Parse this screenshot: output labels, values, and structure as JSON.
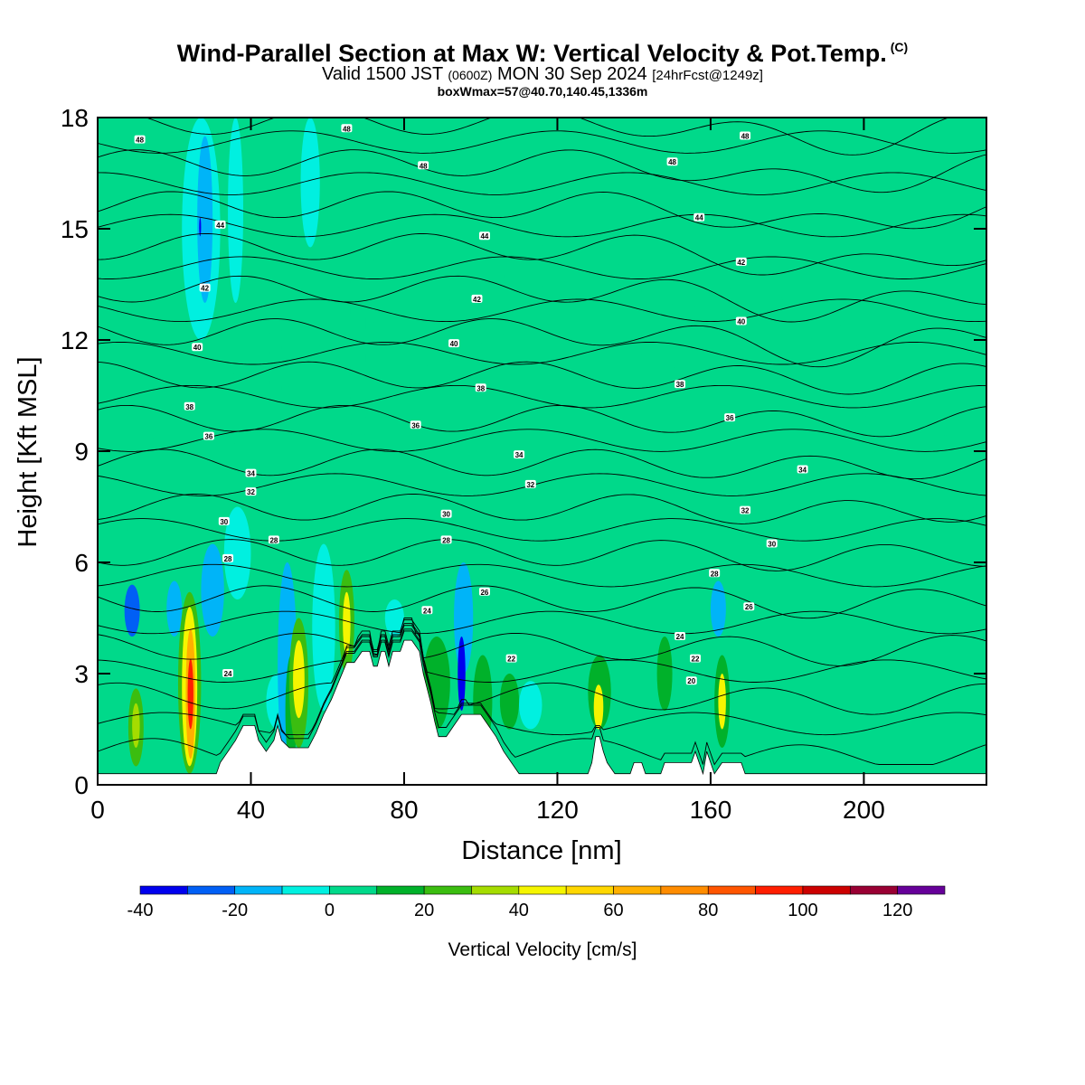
{
  "header": {
    "title": "Wind-Parallel Section at Max W: Vertical Velocity & Pot.Temp.",
    "title_mark": "(C)",
    "valid_prefix": "Valid 1500 JST",
    "valid_utc": "(0600Z)",
    "valid_date": "MON 30 Sep 2024",
    "forecast": "[24hrFcst@1249z]",
    "box_info": "boxWmax=57@40.70,140.45,1336m"
  },
  "chart_data": {
    "type": "heatmap",
    "xlabel": "Distance [nm]",
    "ylabel": "Height [Kft MSL]",
    "xlim": [
      0,
      232
    ],
    "ylim": [
      0,
      18
    ],
    "x_ticks": [
      "0",
      "40",
      "80",
      "120",
      "160",
      "200"
    ],
    "x_tick_values": [
      0,
      40,
      80,
      120,
      160,
      200
    ],
    "y_ticks": [
      "0",
      "3",
      "6",
      "9",
      "12",
      "15",
      "18"
    ],
    "y_tick_values": [
      0,
      3,
      6,
      9,
      12,
      15,
      18
    ],
    "background_field_value": 0,
    "colorbar": {
      "label": "Vertical Velocity [cm/s]",
      "tick_labels": [
        "-40",
        "-20",
        "0",
        "20",
        "40",
        "60",
        "80",
        "100",
        "120"
      ],
      "tick_values": [
        -40,
        -20,
        0,
        20,
        40,
        60,
        80,
        100,
        120
      ],
      "bins": [
        -40,
        -30,
        -20,
        -10,
        0,
        10,
        20,
        30,
        40,
        50,
        60,
        70,
        80,
        90,
        100,
        110,
        120,
        130
      ],
      "colors": [
        "#0000ee",
        "#005ff5",
        "#00b4f8",
        "#00f0e0",
        "#00d98a",
        "#00b12a",
        "#3bbd10",
        "#a5dc00",
        "#f5f500",
        "#ffd700",
        "#ffb000",
        "#ff8c00",
        "#ff5500",
        "#ff1e00",
        "#cc0000",
        "#990033",
        "#660099"
      ]
    },
    "cells": [
      {
        "x": [
          0,
          4
        ],
        "y": [
          5.5,
          9.5
        ],
        "w": 5
      },
      {
        "x": [
          4,
          10
        ],
        "y": [
          0.5,
          3.5
        ],
        "w": 5
      },
      {
        "x": [
          8,
          12
        ],
        "y": [
          0.5,
          2.6
        ],
        "w": 20
      },
      {
        "x": [
          9,
          11
        ],
        "y": [
          1.0,
          2.2
        ],
        "w": 35
      },
      {
        "x": [
          7,
          11
        ],
        "y": [
          4.0,
          5.4
        ],
        "w": -25
      },
      {
        "x": [
          8,
          12
        ],
        "y": [
          5.5,
          8.5
        ],
        "w": 5
      },
      {
        "x": [
          16,
          22
        ],
        "y": [
          0.5,
          2.0
        ],
        "w": 5
      },
      {
        "x": [
          18,
          22
        ],
        "y": [
          4.0,
          5.5
        ],
        "w": -15
      },
      {
        "x": [
          21,
          27
        ],
        "y": [
          0.3,
          5.2
        ],
        "w": 25
      },
      {
        "x": [
          22,
          26
        ],
        "y": [
          0.5,
          4.8
        ],
        "w": 45
      },
      {
        "x": [
          23,
          25.5
        ],
        "y": [
          0.7,
          4.2
        ],
        "w": 65
      },
      {
        "x": [
          23.5,
          25
        ],
        "y": [
          1.5,
          3.4
        ],
        "w": 95
      },
      {
        "x": [
          20,
          24
        ],
        "y": [
          11.5,
          18
        ],
        "w": 5
      },
      {
        "x": [
          22,
          32
        ],
        "y": [
          12,
          18
        ],
        "w": -10
      },
      {
        "x": [
          26,
          30
        ],
        "y": [
          13,
          17.5
        ],
        "w": -20
      },
      {
        "x": [
          26.5,
          27
        ],
        "y": [
          14.8,
          15.3
        ],
        "w": -35
      },
      {
        "x": [
          30,
          36
        ],
        "y": [
          8.0,
          12.0
        ],
        "w": 5
      },
      {
        "x": [
          27,
          33
        ],
        "y": [
          4.0,
          6.5
        ],
        "w": -15
      },
      {
        "x": [
          33,
          40
        ],
        "y": [
          5.0,
          7.5
        ],
        "w": -10
      },
      {
        "x": [
          38,
          42
        ],
        "y": [
          1.0,
          4.5
        ],
        "w": 5
      },
      {
        "x": [
          38,
          44
        ],
        "y": [
          12.5,
          18
        ],
        "w": 5
      },
      {
        "x": [
          34,
          38
        ],
        "y": [
          13,
          18
        ],
        "w": -10
      },
      {
        "x": [
          44,
          50
        ],
        "y": [
          1.5,
          3.0
        ],
        "w": -10
      },
      {
        "x": [
          45,
          48
        ],
        "y": [
          8.0,
          14.5
        ],
        "w": 5
      },
      {
        "x": [
          47,
          52
        ],
        "y": [
          0.5,
          6.0
        ],
        "w": -15
      },
      {
        "x": [
          49,
          52
        ],
        "y": [
          0.5,
          3.5
        ],
        "w": 15
      },
      {
        "x": [
          50,
          55
        ],
        "y": [
          1.0,
          4.5
        ],
        "w": 25
      },
      {
        "x": [
          51,
          54
        ],
        "y": [
          1.8,
          3.9
        ],
        "w": 45
      },
      {
        "x": [
          51,
          53
        ],
        "y": [
          9.5,
          11.0
        ],
        "w": 15
      },
      {
        "x": [
          50,
          55
        ],
        "y": [
          8.5,
          12.5
        ],
        "w": 5
      },
      {
        "x": [
          53,
          58
        ],
        "y": [
          14.5,
          18
        ],
        "w": -10
      },
      {
        "x": [
          56,
          62
        ],
        "y": [
          2.0,
          6.5
        ],
        "w": -10
      },
      {
        "x": [
          58,
          63
        ],
        "y": [
          9.0,
          16.0
        ],
        "w": 5
      },
      {
        "x": [
          63,
          67
        ],
        "y": [
          3.0,
          5.8
        ],
        "w": 25
      },
      {
        "x": [
          64,
          66
        ],
        "y": [
          3.5,
          5.2
        ],
        "w": 45
      },
      {
        "x": [
          66,
          70
        ],
        "y": [
          6.0,
          18
        ],
        "w": 5
      },
      {
        "x": [
          72,
          76
        ],
        "y": [
          10.0,
          17.0
        ],
        "w": 5
      },
      {
        "x": [
          75,
          80
        ],
        "y": [
          4.0,
          5.0
        ],
        "w": -10
      },
      {
        "x": [
          82,
          88
        ],
        "y": [
          3.5,
          5.0
        ],
        "w": 5
      },
      {
        "x": [
          85,
          92
        ],
        "y": [
          1.5,
          4.0
        ],
        "w": 15
      },
      {
        "x": [
          88,
          90
        ],
        "y": [
          10.5,
          13.0
        ],
        "w": 15
      },
      {
        "x": [
          86,
          92
        ],
        "y": [
          8.0,
          16.5
        ],
        "w": 5
      },
      {
        "x": [
          93,
          98
        ],
        "y": [
          3.0,
          6.0
        ],
        "w": -15
      },
      {
        "x": [
          94,
          96
        ],
        "y": [
          2.0,
          4.0
        ],
        "w": -35
      },
      {
        "x": [
          98,
          103
        ],
        "y": [
          1.0,
          3.5
        ],
        "w": 15
      },
      {
        "x": [
          100,
          106
        ],
        "y": [
          8.5,
          18
        ],
        "w": 5
      },
      {
        "x": [
          105,
          110
        ],
        "y": [
          1.5,
          3.0
        ],
        "w": 15
      },
      {
        "x": [
          110,
          116
        ],
        "y": [
          1.5,
          2.8
        ],
        "w": -10
      },
      {
        "x": [
          116,
          122
        ],
        "y": [
          11.0,
          17.0
        ],
        "w": 5
      },
      {
        "x": [
          118,
          124
        ],
        "y": [
          3.5,
          6.0
        ],
        "w": 5
      },
      {
        "x": [
          126,
          130
        ],
        "y": [
          1.5,
          3.2
        ],
        "w": 5
      },
      {
        "x": [
          128,
          134
        ],
        "y": [
          1.5,
          3.5
        ],
        "w": 15
      },
      {
        "x": [
          129.5,
          132
        ],
        "y": [
          1.5,
          2.7
        ],
        "w": 45
      },
      {
        "x": [
          136,
          142
        ],
        "y": [
          8.0,
          17.5
        ],
        "w": 5
      },
      {
        "x": [
          140,
          146
        ],
        "y": [
          1.5,
          5.5
        ],
        "w": 5
      },
      {
        "x": [
          146,
          150
        ],
        "y": [
          2.0,
          4.0
        ],
        "w": 15
      },
      {
        "x": [
          150,
          156
        ],
        "y": [
          10.0,
          17.0
        ],
        "w": 5
      },
      {
        "x": [
          156,
          160
        ],
        "y": [
          1.5,
          3.5
        ],
        "w": 5
      },
      {
        "x": [
          160,
          164
        ],
        "y": [
          4.0,
          5.5
        ],
        "w": -20
      },
      {
        "x": [
          161,
          165
        ],
        "y": [
          1.0,
          3.5
        ],
        "w": 15
      },
      {
        "x": [
          162,
          164
        ],
        "y": [
          1.5,
          3.0
        ],
        "w": 45
      },
      {
        "x": [
          165,
          175
        ],
        "y": [
          9.0,
          17.0
        ],
        "w": 5
      },
      {
        "x": [
          170,
          195
        ],
        "y": [
          7.5,
          15.5
        ],
        "w": 5
      },
      {
        "x": [
          176,
          200
        ],
        "y": [
          12.0,
          18
        ],
        "w": 5
      },
      {
        "x": [
          195,
          232
        ],
        "y": [
          9.5,
          12.5
        ],
        "w": 5
      },
      {
        "x": [
          200,
          232
        ],
        "y": [
          7.0,
          9.5
        ],
        "w": 5
      },
      {
        "x": [
          212,
          224
        ],
        "y": [
          3.0,
          7.5
        ],
        "w": 5
      },
      {
        "x": [
          220,
          232
        ],
        "y": [
          1.5,
          6.5
        ],
        "w": 5
      },
      {
        "x": [
          225,
          232
        ],
        "y": [
          0.5,
          3.0
        ],
        "w": 5
      },
      {
        "x": [
          0,
          6
        ],
        "y": [
          16.0,
          18
        ],
        "w": 5
      },
      {
        "x": [
          14,
          18
        ],
        "y": [
          9.0,
          11.5
        ],
        "w": 5
      }
    ],
    "terrain": [
      [
        0,
        0.3
      ],
      [
        31,
        0.3
      ],
      [
        32,
        0.6
      ],
      [
        34,
        0.9
      ],
      [
        36,
        1.2
      ],
      [
        38,
        1.6
      ],
      [
        41,
        1.6
      ],
      [
        42,
        1.2
      ],
      [
        44,
        0.9
      ],
      [
        46,
        1.2
      ],
      [
        47,
        1.6
      ],
      [
        48,
        1.2
      ],
      [
        50,
        1.0
      ],
      [
        55,
        1.0
      ],
      [
        57,
        1.4
      ],
      [
        59,
        1.9
      ],
      [
        61,
        2.3
      ],
      [
        63,
        2.8
      ],
      [
        65,
        3.3
      ],
      [
        67,
        3.3
      ],
      [
        69,
        3.6
      ],
      [
        71,
        3.6
      ],
      [
        72,
        3.2
      ],
      [
        73,
        3.2
      ],
      [
        74,
        3.6
      ],
      [
        75,
        3.6
      ],
      [
        76,
        3.2
      ],
      [
        77,
        3.6
      ],
      [
        79,
        3.6
      ],
      [
        80,
        3.9
      ],
      [
        82,
        3.9
      ],
      [
        84,
        3.6
      ],
      [
        85,
        3.0
      ],
      [
        86,
        2.6
      ],
      [
        87,
        2.2
      ],
      [
        88,
        1.7
      ],
      [
        89,
        1.3
      ],
      [
        91,
        1.3
      ],
      [
        93,
        1.6
      ],
      [
        95,
        1.9
      ],
      [
        100,
        1.9
      ],
      [
        102,
        1.6
      ],
      [
        104,
        1.3
      ],
      [
        106,
        0.9
      ],
      [
        108,
        0.6
      ],
      [
        110,
        0.3
      ],
      [
        128,
        0.3
      ],
      [
        129,
        0.6
      ],
      [
        130,
        1.3
      ],
      [
        131,
        1.3
      ],
      [
        132,
        0.9
      ],
      [
        133,
        0.6
      ],
      [
        135,
        0.3
      ],
      [
        139,
        0.3
      ],
      [
        140,
        0.6
      ],
      [
        142,
        0.6
      ],
      [
        143,
        0.3
      ],
      [
        147,
        0.3
      ],
      [
        148,
        0.6
      ],
      [
        155,
        0.6
      ],
      [
        156,
        0.9
      ],
      [
        157,
        0.6
      ],
      [
        158,
        0.3
      ],
      [
        159,
        0.9
      ],
      [
        160,
        0.6
      ],
      [
        161,
        0.3
      ],
      [
        163,
        0.6
      ],
      [
        168,
        0.6
      ],
      [
        169,
        0.3
      ],
      [
        232,
        0.3
      ]
    ],
    "theta_levels": [
      20,
      22,
      24,
      26,
      28,
      30,
      32,
      34,
      36,
      38,
      40,
      42,
      44,
      46,
      48
    ],
    "isentrope_labels": [
      {
        "text": "48",
        "x": 11,
        "y": 17.4
      },
      {
        "text": "48",
        "x": 65,
        "y": 17.7
      },
      {
        "text": "48",
        "x": 85,
        "y": 16.7
      },
      {
        "text": "48",
        "x": 150,
        "y": 16.8
      },
      {
        "text": "48",
        "x": 169,
        "y": 17.5
      },
      {
        "text": "44",
        "x": 32,
        "y": 15.1
      },
      {
        "text": "44",
        "x": 101,
        "y": 14.8
      },
      {
        "text": "44",
        "x": 157,
        "y": 15.3
      },
      {
        "text": "42",
        "x": 28,
        "y": 13.4
      },
      {
        "text": "42",
        "x": 99,
        "y": 13.1
      },
      {
        "text": "42",
        "x": 168,
        "y": 14.1
      },
      {
        "text": "40",
        "x": 26,
        "y": 11.8
      },
      {
        "text": "40",
        "x": 93,
        "y": 11.9
      },
      {
        "text": "40",
        "x": 168,
        "y": 12.5
      },
      {
        "text": "38",
        "x": 24,
        "y": 10.2
      },
      {
        "text": "38",
        "x": 100,
        "y": 10.7
      },
      {
        "text": "38",
        "x": 152,
        "y": 10.8
      },
      {
        "text": "36",
        "x": 29,
        "y": 9.4
      },
      {
        "text": "36",
        "x": 83,
        "y": 9.7
      },
      {
        "text": "36",
        "x": 165,
        "y": 9.9
      },
      {
        "text": "34",
        "x": 40,
        "y": 8.4
      },
      {
        "text": "34",
        "x": 110,
        "y": 8.9
      },
      {
        "text": "34",
        "x": 184,
        "y": 8.5
      },
      {
        "text": "32",
        "x": 40,
        "y": 7.9
      },
      {
        "text": "32",
        "x": 113,
        "y": 8.1
      },
      {
        "text": "32",
        "x": 169,
        "y": 7.4
      },
      {
        "text": "30",
        "x": 33,
        "y": 7.1
      },
      {
        "text": "30",
        "x": 91,
        "y": 7.3
      },
      {
        "text": "30",
        "x": 176,
        "y": 6.5
      },
      {
        "text": "28",
        "x": 46,
        "y": 6.6
      },
      {
        "text": "28",
        "x": 91,
        "y": 6.6
      },
      {
        "text": "28",
        "x": 34,
        "y": 6.1
      },
      {
        "text": "28",
        "x": 161,
        "y": 5.7
      },
      {
        "text": "26",
        "x": 101,
        "y": 5.2
      },
      {
        "text": "26",
        "x": 170,
        "y": 4.8
      },
      {
        "text": "24",
        "x": 86,
        "y": 4.7
      },
      {
        "text": "24",
        "x": 34,
        "y": 3.0
      },
      {
        "text": "24",
        "x": 152,
        "y": 4.0
      },
      {
        "text": "22",
        "x": 108,
        "y": 3.4
      },
      {
        "text": "22",
        "x": 156,
        "y": 3.4
      },
      {
        "text": "20",
        "x": 155,
        "y": 2.8
      }
    ]
  }
}
